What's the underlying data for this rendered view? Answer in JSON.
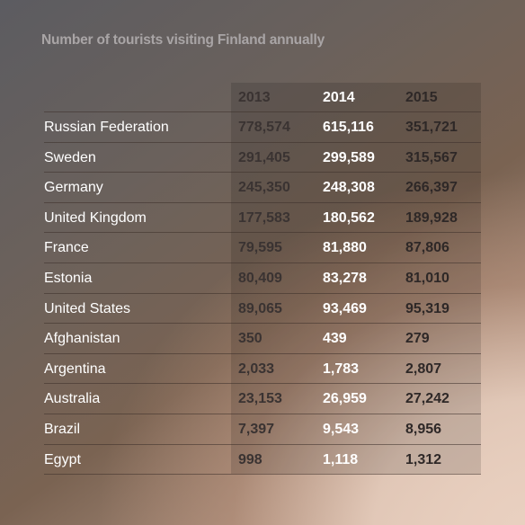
{
  "title": "Number of tourists visiting Finland annually",
  "colors": {
    "dark_text": "#3a3332",
    "white_text": "#ffffff",
    "title_text": "#a9a5a6"
  },
  "chart_data": {
    "type": "table",
    "title": "Number of tourists visiting Finland annually",
    "columns": [
      "2013",
      "2014",
      "2015"
    ],
    "rows": [
      {
        "country": "Russian Federation",
        "values": [
          "778,574",
          "615,116",
          "351,721"
        ]
      },
      {
        "country": "Sweden",
        "values": [
          "291,405",
          "299,589",
          "315,567"
        ]
      },
      {
        "country": "Germany",
        "values": [
          "245,350",
          "248,308",
          "266,397"
        ]
      },
      {
        "country": "United Kingdom",
        "values": [
          "177,583",
          "180,562",
          "189,928"
        ]
      },
      {
        "country": "France",
        "values": [
          "79,595",
          "81,880",
          "87,806"
        ]
      },
      {
        "country": "Estonia",
        "values": [
          "80,409",
          "83,278",
          "81,010"
        ]
      },
      {
        "country": "United States",
        "values": [
          "89,065",
          "93,469",
          "95,319"
        ]
      },
      {
        "country": "Afghanistan",
        "values": [
          "350",
          "439",
          "279"
        ]
      },
      {
        "country": "Argentina",
        "values": [
          "2,033",
          "1,783",
          "2,807"
        ]
      },
      {
        "country": "Australia",
        "values": [
          "23,153",
          "26,959",
          "27,242"
        ]
      },
      {
        "country": "Brazil",
        "values": [
          "7,397",
          "9,543",
          "8,956"
        ]
      },
      {
        "country": "Egypt",
        "values": [
          "998",
          "1,118",
          "1,312"
        ]
      }
    ]
  }
}
